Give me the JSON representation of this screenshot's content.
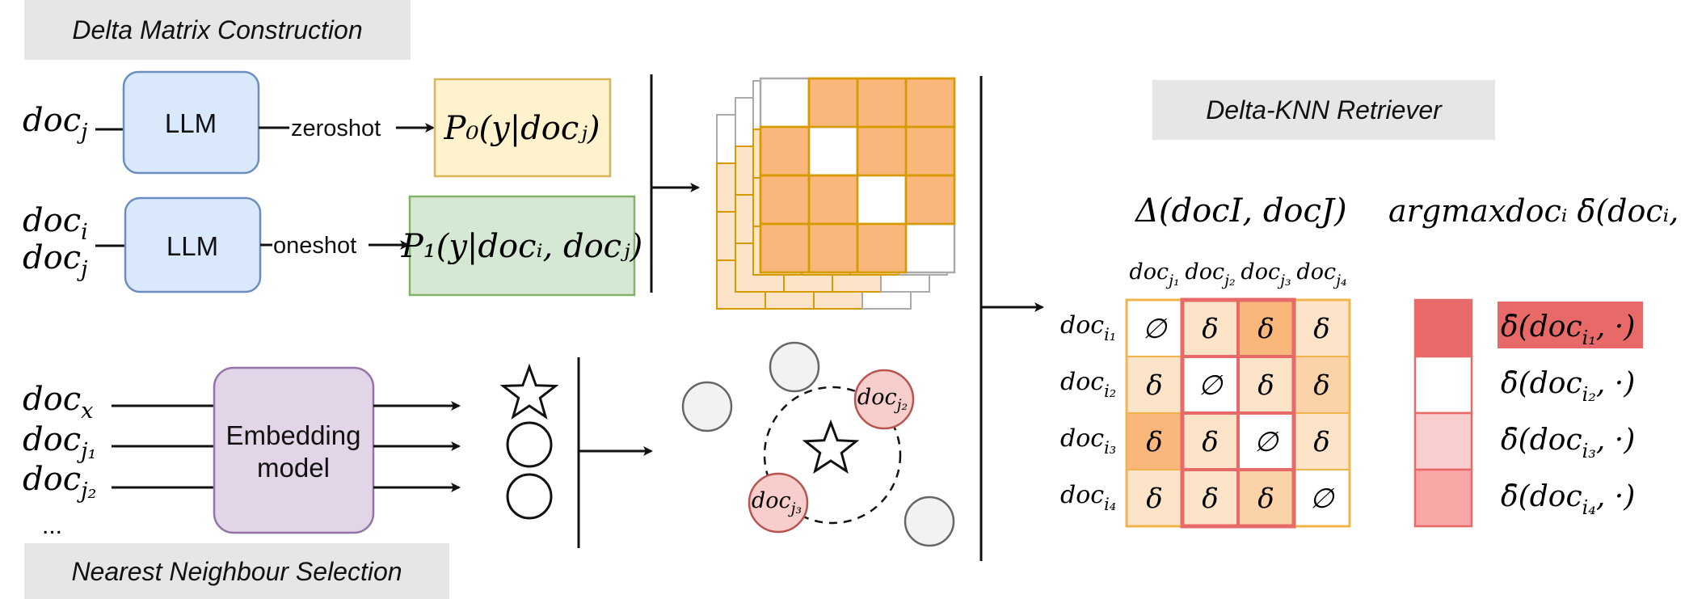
{
  "sections": {
    "delta_matrix": "Delta Matrix Construction",
    "retriever": "Delta-KNN Retriever",
    "nearest_neighbour": "Nearest Neighbour Selection"
  },
  "top_pipeline": {
    "row1": {
      "input": "doc",
      "input_sub": "j",
      "model": "LLM",
      "edge": "zeroshot",
      "output": "P₀(y|docⱼ)"
    },
    "row2": {
      "input1": "doc",
      "input1_sub": "i",
      "input2": "doc",
      "input2_sub": "j",
      "model": "LLM",
      "edge": "oneshot",
      "output": "P₁(y|docᵢ, docⱼ)"
    }
  },
  "bottom_pipeline": {
    "inputs": [
      {
        "text": "doc",
        "sub": "x"
      },
      {
        "text": "doc",
        "sub": "j₁"
      },
      {
        "text": "doc",
        "sub": "j₂"
      }
    ],
    "ellipsis": "...",
    "model_line1": "Embedding",
    "model_line2": "model",
    "neighbour_labels": [
      {
        "text": "doc",
        "sub": "j₂"
      },
      {
        "text": "doc",
        "sub": "j₃"
      }
    ]
  },
  "retriever": {
    "matrix_title": "Δ(docI, docJ)",
    "argmax_title": "argmaxdocᵢ δ̄(docᵢ, ·)",
    "column_headers": [
      {
        "text": "doc",
        "sub": "j₁"
      },
      {
        "text": "doc",
        "sub": "j₂"
      },
      {
        "text": "doc",
        "sub": "j₃"
      },
      {
        "text": "doc",
        "sub": "j₄"
      }
    ],
    "row_headers": [
      {
        "text": "doc",
        "sub": "i₁"
      },
      {
        "text": "doc",
        "sub": "i₂"
      },
      {
        "text": "doc",
        "sub": "i₃"
      },
      {
        "text": "doc",
        "sub": "i₄"
      }
    ],
    "cells": [
      [
        "∅",
        "δ",
        "δ",
        "δ"
      ],
      [
        "δ",
        "∅",
        "δ",
        "δ"
      ],
      [
        "δ",
        "δ",
        "∅",
        "δ"
      ],
      [
        "δ",
        "δ",
        "δ",
        "∅"
      ]
    ],
    "cell_colors": [
      [
        "#ffffff",
        "#fde3c8",
        "#f9b77c",
        "#fde3c8"
      ],
      [
        "#fde3c8",
        "#ffffff",
        "#fde3c8",
        "#fcd2a8"
      ],
      [
        "#f9b77c",
        "#fde3c8",
        "#ffffff",
        "#fde3c8"
      ],
      [
        "#fde3c8",
        "#fde3c8",
        "#fcd2a8",
        "#ffffff"
      ]
    ],
    "score_labels": [
      {
        "text": "δ̄(doc",
        "sub": "i₁",
        "tail": ", ·)"
      },
      {
        "text": "δ̄(doc",
        "sub": "i₂",
        "tail": ", ·)"
      },
      {
        "text": "δ̄(doc",
        "sub": "i₃",
        "tail": ", ·)"
      },
      {
        "text": "δ̄(doc",
        "sub": "i₄",
        "tail": ", ·)"
      }
    ],
    "score_colors": [
      "#e86a68",
      "#ffffff",
      "#f8cece",
      "#f8a6a6"
    ]
  },
  "colors": {
    "llm_fill": "#dae8fc",
    "llm_stroke": "#6c8ebf",
    "p0_fill": "#fff2cc",
    "p0_stroke": "#d6b656",
    "p1_fill": "#d5e8d4",
    "p1_stroke": "#82b366",
    "embed_fill": "#e1d5e7",
    "embed_stroke": "#9673a6",
    "section_fill": "#e6e6e6",
    "orange": "#f9b77c",
    "orange_stroke": "#d79b00",
    "red_circle_fill": "#f8cecc",
    "red_circle_stroke": "#b85450",
    "grey_circle_fill": "#f2f2f2",
    "grey_circle_stroke": "#666666",
    "highlight": "#e86a68"
  }
}
